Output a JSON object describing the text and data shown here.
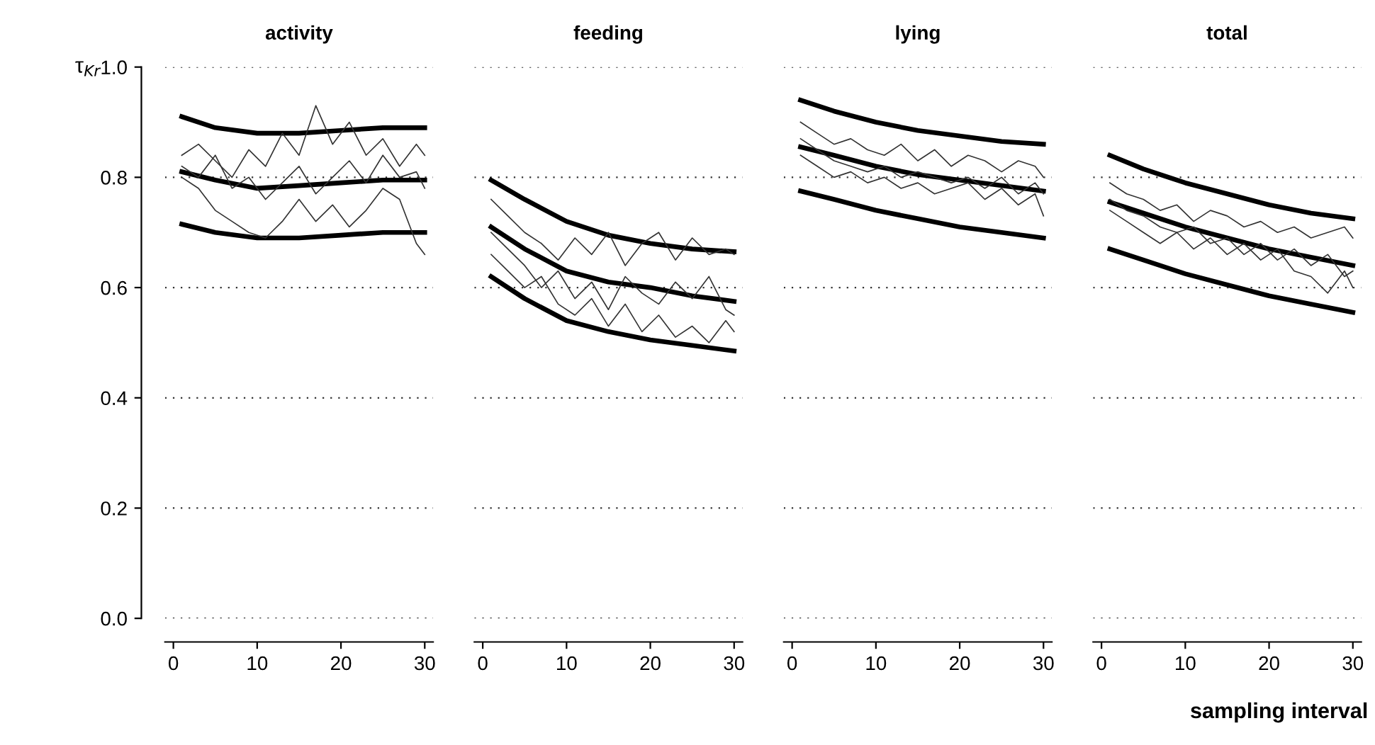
{
  "chart_data": [
    {
      "type": "line",
      "title": "activity",
      "ylabel": "τ$_{Kr}$",
      "xlim": [
        -1,
        31
      ],
      "ylim": [
        0,
        1.0
      ],
      "xticks": [
        0,
        10,
        20,
        30
      ],
      "yticks": [
        {
          "value": 0,
          "label": "0.0"
        },
        0.2,
        0.4,
        0.6,
        0.8,
        {
          "value": 1,
          "label": "1.0"
        }
      ],
      "grid": "y",
      "legend": false,
      "tick_labels": "xy",
      "series": [
        {
          "color": "#000000",
          "x": [
            1,
            5,
            10,
            15,
            20,
            25,
            30
          ],
          "values": [
            0.91,
            0.89,
            0.88,
            0.88,
            0.885,
            0.89,
            0.89
          ]
        },
        {
          "color": "#000000",
          "x": [
            1,
            5,
            10,
            15,
            20,
            25,
            30
          ],
          "values": [
            0.81,
            0.795,
            0.78,
            0.785,
            0.79,
            0.795,
            0.795
          ]
        },
        {
          "color": "#000000",
          "x": [
            1,
            5,
            10,
            15,
            20,
            25,
            30
          ],
          "values": [
            0.715,
            0.7,
            0.69,
            0.69,
            0.695,
            0.7,
            0.7
          ]
        },
        {
          "color": "#333333",
          "x": [
            1,
            3,
            5,
            7,
            9,
            11,
            13,
            15,
            17,
            19,
            21,
            23,
            25,
            27,
            29,
            30
          ],
          "values": [
            0.84,
            0.86,
            0.83,
            0.8,
            0.85,
            0.82,
            0.88,
            0.84,
            0.93,
            0.86,
            0.9,
            0.84,
            0.87,
            0.82,
            0.86,
            0.84
          ]
        },
        {
          "color": "#333333",
          "x": [
            1,
            3,
            5,
            7,
            9,
            11,
            13,
            15,
            17,
            19,
            21,
            23,
            25,
            27,
            29,
            30
          ],
          "values": [
            0.8,
            0.78,
            0.74,
            0.72,
            0.7,
            0.69,
            0.72,
            0.76,
            0.72,
            0.75,
            0.71,
            0.74,
            0.78,
            0.76,
            0.68,
            0.66
          ]
        },
        {
          "color": "#333333",
          "x": [
            1,
            3,
            5,
            7,
            9,
            11,
            13,
            15,
            17,
            19,
            21,
            23,
            25,
            27,
            29,
            30
          ],
          "values": [
            0.82,
            0.8,
            0.84,
            0.78,
            0.8,
            0.76,
            0.79,
            0.82,
            0.77,
            0.8,
            0.83,
            0.79,
            0.84,
            0.8,
            0.81,
            0.78
          ]
        }
      ]
    },
    {
      "type": "line",
      "title": "feeding",
      "xlim": [
        -1,
        31
      ],
      "ylim": [
        0,
        1.0
      ],
      "xticks": [
        0,
        10,
        20,
        30
      ],
      "yticks": [
        0.0,
        0.2,
        0.4,
        0.6,
        0.8,
        1.0
      ],
      "grid": "y",
      "legend": false,
      "tick_labels": "x",
      "series": [
        {
          "color": "#000000",
          "x": [
            1,
            5,
            10,
            15,
            20,
            25,
            30
          ],
          "values": [
            0.795,
            0.76,
            0.72,
            0.695,
            0.68,
            0.67,
            0.665
          ]
        },
        {
          "color": "#000000",
          "x": [
            1,
            5,
            10,
            15,
            20,
            25,
            30
          ],
          "values": [
            0.71,
            0.67,
            0.63,
            0.61,
            0.6,
            0.585,
            0.575
          ]
        },
        {
          "color": "#000000",
          "x": [
            1,
            5,
            10,
            15,
            20,
            25,
            30
          ],
          "values": [
            0.62,
            0.58,
            0.54,
            0.52,
            0.505,
            0.495,
            0.485
          ]
        },
        {
          "color": "#333333",
          "x": [
            1,
            3,
            5,
            7,
            9,
            11,
            13,
            15,
            17,
            19,
            21,
            23,
            25,
            27,
            29,
            30
          ],
          "values": [
            0.76,
            0.73,
            0.7,
            0.68,
            0.65,
            0.69,
            0.66,
            0.7,
            0.64,
            0.68,
            0.7,
            0.65,
            0.69,
            0.66,
            0.67,
            0.66
          ]
        },
        {
          "color": "#333333",
          "x": [
            1,
            3,
            5,
            7,
            9,
            11,
            13,
            15,
            17,
            19,
            21,
            23,
            25,
            27,
            29,
            30
          ],
          "values": [
            0.66,
            0.63,
            0.6,
            0.62,
            0.57,
            0.55,
            0.58,
            0.53,
            0.57,
            0.52,
            0.55,
            0.51,
            0.53,
            0.5,
            0.54,
            0.52
          ]
        },
        {
          "color": "#333333",
          "x": [
            1,
            3,
            5,
            7,
            9,
            11,
            13,
            15,
            17,
            19,
            21,
            23,
            25,
            27,
            29,
            30
          ],
          "values": [
            0.7,
            0.67,
            0.64,
            0.6,
            0.63,
            0.58,
            0.61,
            0.56,
            0.62,
            0.59,
            0.57,
            0.61,
            0.58,
            0.62,
            0.56,
            0.55
          ]
        }
      ]
    },
    {
      "type": "line",
      "title": "lying",
      "xlim": [
        -1,
        31
      ],
      "ylim": [
        0,
        1.0
      ],
      "xticks": [
        0,
        10,
        20,
        30
      ],
      "yticks": [
        0.0,
        0.2,
        0.4,
        0.6,
        0.8,
        1.0
      ],
      "grid": "y",
      "legend": false,
      "tick_labels": "x",
      "series": [
        {
          "color": "#000000",
          "x": [
            1,
            5,
            10,
            15,
            20,
            25,
            30
          ],
          "values": [
            0.94,
            0.92,
            0.9,
            0.885,
            0.875,
            0.865,
            0.86
          ]
        },
        {
          "color": "#000000",
          "x": [
            1,
            5,
            10,
            15,
            20,
            25,
            30
          ],
          "values": [
            0.855,
            0.84,
            0.82,
            0.805,
            0.795,
            0.785,
            0.775
          ]
        },
        {
          "color": "#000000",
          "x": [
            1,
            5,
            10,
            15,
            20,
            25,
            30
          ],
          "values": [
            0.775,
            0.76,
            0.74,
            0.725,
            0.71,
            0.7,
            0.69
          ]
        },
        {
          "color": "#333333",
          "x": [
            1,
            3,
            5,
            7,
            9,
            11,
            13,
            15,
            17,
            19,
            21,
            23,
            25,
            27,
            29,
            30
          ],
          "values": [
            0.9,
            0.88,
            0.86,
            0.87,
            0.85,
            0.84,
            0.86,
            0.83,
            0.85,
            0.82,
            0.84,
            0.83,
            0.81,
            0.83,
            0.82,
            0.8
          ]
        },
        {
          "color": "#333333",
          "x": [
            1,
            3,
            5,
            7,
            9,
            11,
            13,
            15,
            17,
            19,
            21,
            23,
            25,
            27,
            29,
            30
          ],
          "values": [
            0.84,
            0.82,
            0.8,
            0.81,
            0.79,
            0.8,
            0.78,
            0.79,
            0.77,
            0.78,
            0.79,
            0.76,
            0.78,
            0.75,
            0.77,
            0.73
          ]
        },
        {
          "color": "#333333",
          "x": [
            1,
            3,
            5,
            7,
            9,
            11,
            13,
            15,
            17,
            19,
            21,
            23,
            25,
            27,
            29,
            30
          ],
          "values": [
            0.87,
            0.85,
            0.83,
            0.82,
            0.81,
            0.82,
            0.8,
            0.81,
            0.8,
            0.79,
            0.8,
            0.78,
            0.8,
            0.77,
            0.79,
            0.77
          ]
        }
      ]
    },
    {
      "type": "line",
      "title": "total",
      "xlim": [
        -1,
        31
      ],
      "ylim": [
        0,
        1.0
      ],
      "xticks": [
        0,
        10,
        20,
        30
      ],
      "yticks": [
        0.0,
        0.2,
        0.4,
        0.6,
        0.8,
        1.0
      ],
      "grid": "y",
      "legend": false,
      "tick_labels": "x",
      "series": [
        {
          "color": "#000000",
          "x": [
            1,
            5,
            10,
            15,
            20,
            25,
            30
          ],
          "values": [
            0.84,
            0.815,
            0.79,
            0.77,
            0.75,
            0.735,
            0.725
          ]
        },
        {
          "color": "#000000",
          "x": [
            1,
            5,
            10,
            15,
            20,
            25,
            30
          ],
          "values": [
            0.755,
            0.735,
            0.71,
            0.69,
            0.67,
            0.655,
            0.64
          ]
        },
        {
          "color": "#000000",
          "x": [
            1,
            5,
            10,
            15,
            20,
            25,
            30
          ],
          "values": [
            0.67,
            0.65,
            0.625,
            0.605,
            0.585,
            0.57,
            0.555
          ]
        },
        {
          "color": "#333333",
          "x": [
            1,
            3,
            5,
            7,
            9,
            11,
            13,
            15,
            17,
            19,
            21,
            23,
            25,
            27,
            29,
            30
          ],
          "values": [
            0.79,
            0.77,
            0.76,
            0.74,
            0.75,
            0.72,
            0.74,
            0.73,
            0.71,
            0.72,
            0.7,
            0.71,
            0.69,
            0.7,
            0.71,
            0.69
          ]
        },
        {
          "color": "#333333",
          "x": [
            1,
            3,
            5,
            7,
            9,
            11,
            13,
            15,
            17,
            19,
            21,
            23,
            25,
            27,
            29,
            30
          ],
          "values": [
            0.74,
            0.72,
            0.7,
            0.68,
            0.7,
            0.67,
            0.69,
            0.66,
            0.68,
            0.65,
            0.67,
            0.63,
            0.62,
            0.59,
            0.63,
            0.6
          ]
        },
        {
          "color": "#333333",
          "x": [
            1,
            3,
            5,
            7,
            9,
            11,
            13,
            15,
            17,
            19,
            21,
            23,
            25,
            27,
            29,
            30
          ],
          "values": [
            0.76,
            0.74,
            0.73,
            0.71,
            0.7,
            0.71,
            0.68,
            0.69,
            0.66,
            0.68,
            0.65,
            0.67,
            0.64,
            0.66,
            0.62,
            0.63
          ]
        }
      ]
    },
    {
      "type": "other",
      "annotations": [
        "sampling interval"
      ]
    }
  ]
}
